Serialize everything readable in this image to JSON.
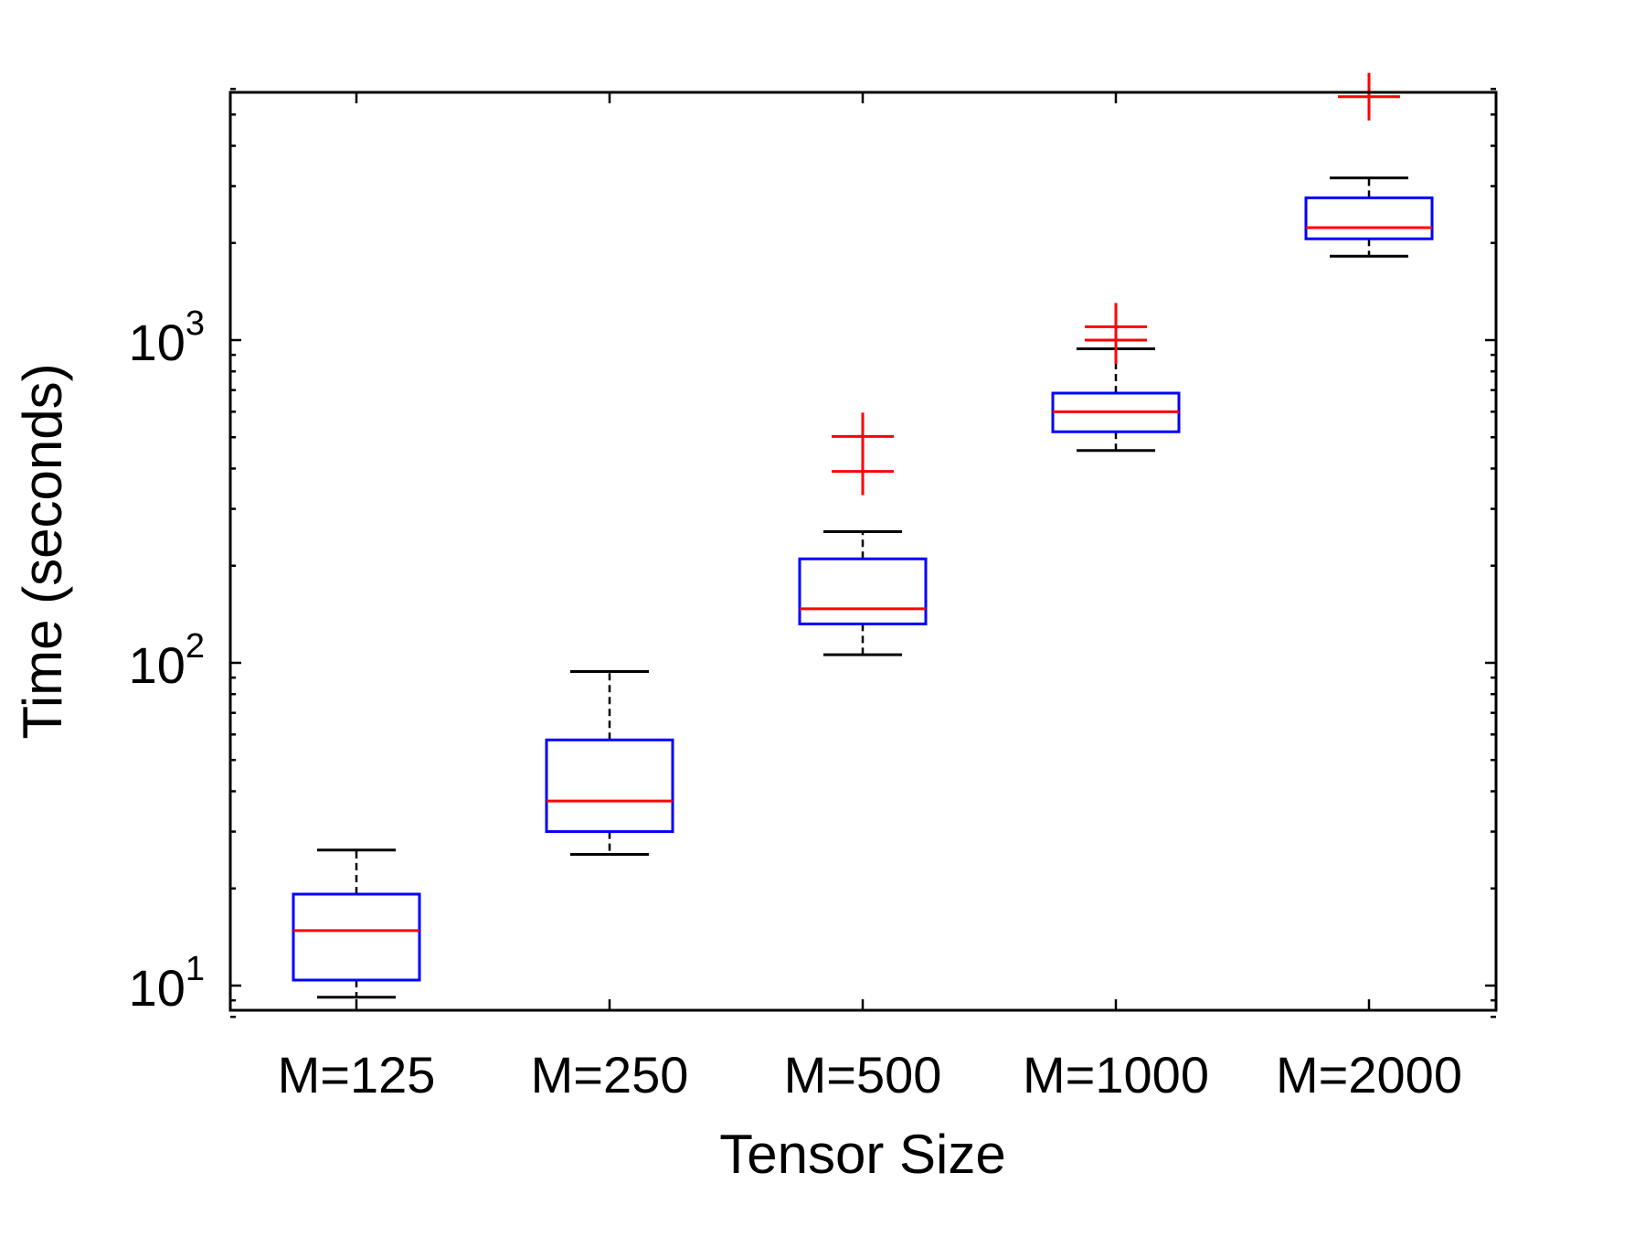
{
  "chart_data": {
    "type": "boxplot",
    "title": "",
    "xlabel": "Tensor Size",
    "ylabel": "Time (seconds)",
    "yscale": "log",
    "ylim": [
      8,
      6200
    ],
    "grid": false,
    "legend": "none",
    "categories": [
      "M=125",
      "M=250",
      "M=500",
      "M=1000",
      "M=2000"
    ],
    "y_ticks": [
      {
        "value": 10,
        "base": "10",
        "exp": "1"
      },
      {
        "value": 100,
        "base": "10",
        "exp": "2"
      },
      {
        "value": 1000,
        "base": "10",
        "exp": "3"
      }
    ],
    "boxes": [
      {
        "category": "M=125",
        "whisker_low": 9.2,
        "q1": 10.4,
        "median": 14.8,
        "q3": 19.2,
        "whisker_high": 26.3,
        "outliers": []
      },
      {
        "category": "M=250",
        "whisker_low": 25.5,
        "q1": 30.0,
        "median": 37.3,
        "q3": 57.7,
        "whisker_high": 94.0,
        "outliers": []
      },
      {
        "category": "M=500",
        "whisker_low": 106.0,
        "q1": 132.0,
        "median": 147.0,
        "q3": 210.0,
        "whisker_high": 255.0,
        "outliers": [
          392,
          503
        ]
      },
      {
        "category": "M=1000",
        "whisker_low": 455.0,
        "q1": 520.0,
        "median": 600.0,
        "q3": 685.0,
        "whisker_high": 940.0,
        "outliers": [
          1000,
          1100
        ]
      },
      {
        "category": "M=2000",
        "whisker_low": 1820.0,
        "q1": 2060.0,
        "median": 2230.0,
        "q3": 2760.0,
        "whisker_high": 3180.0,
        "outliers": [
          5680
        ]
      }
    ],
    "colors": {
      "box": "#0000ff",
      "median": "#ff0000",
      "whisker": "#000000",
      "outlier": "#ff0000",
      "axes": "#000000"
    }
  }
}
